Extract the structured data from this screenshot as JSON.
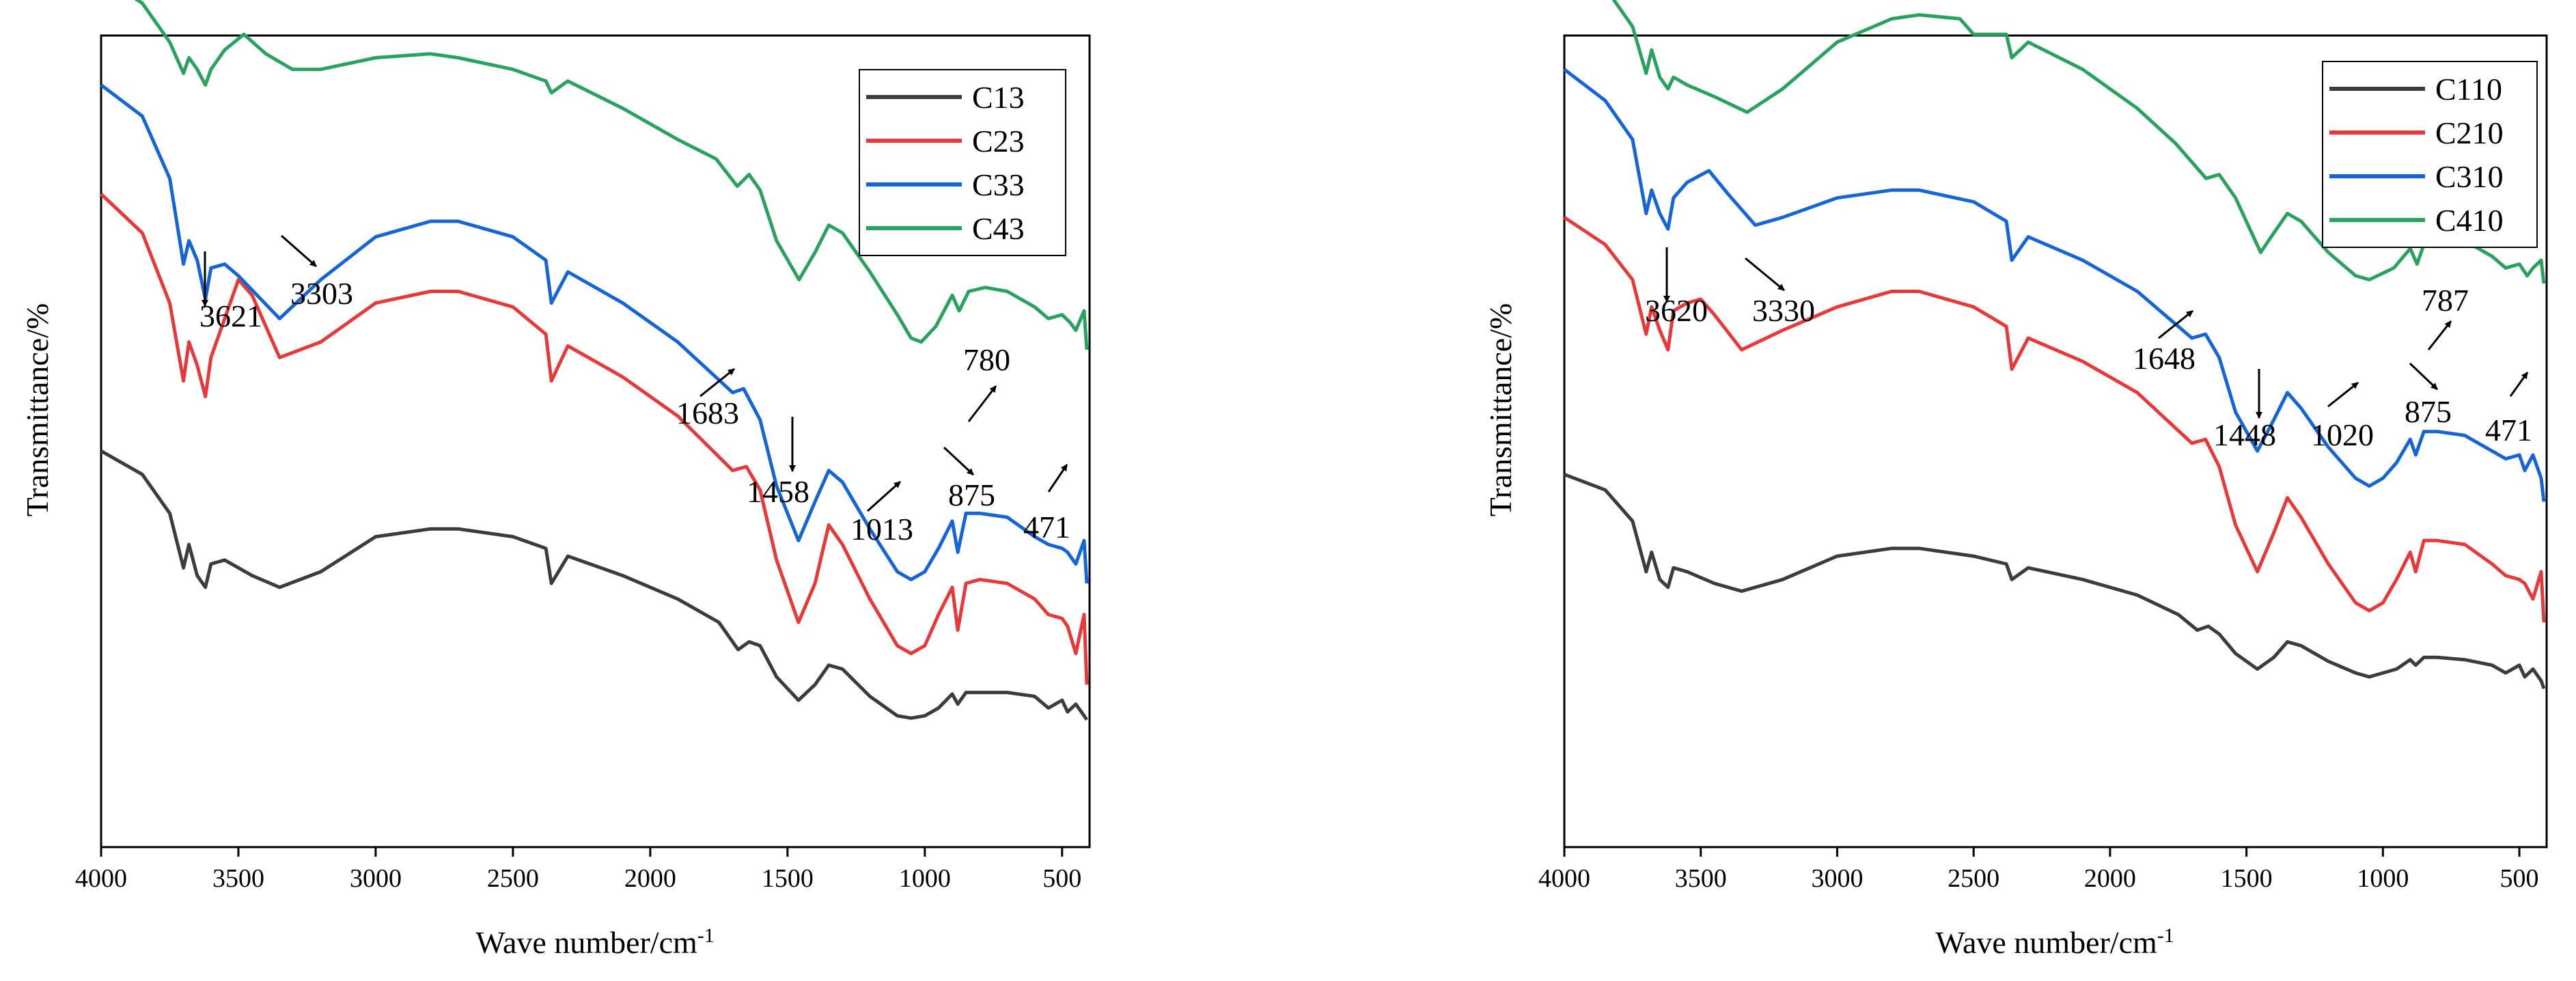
{
  "chart_data": [
    {
      "type": "line",
      "xlabel": "Wave number/cm",
      "xlabel_sup": "-1",
      "ylabel": "Transmittance/%",
      "xlim": [
        4000,
        400
      ],
      "x_ticks": [
        4000,
        3500,
        3000,
        2500,
        2000,
        1500,
        1000,
        500
      ],
      "x_tick_labels": [
        "4000",
        "3500",
        "3000",
        "2500",
        "2000",
        "1500",
        "1000",
        "500"
      ],
      "y_ticks_shown": false,
      "legend": "top-right",
      "series": [
        {
          "name": "C13",
          "color": "#3c3c3c",
          "x": [
            4000,
            3850,
            3750,
            3700,
            3680,
            3650,
            3620,
            3600,
            3550,
            3450,
            3350,
            3200,
            3000,
            2800,
            2700,
            2500,
            2380,
            2360,
            2300,
            2100,
            1900,
            1750,
            1680,
            1640,
            1600,
            1540,
            1460,
            1400,
            1350,
            1300,
            1200,
            1100,
            1050,
            1000,
            950,
            900,
            880,
            850,
            800,
            700,
            600,
            550,
            500,
            480,
            450,
            420,
            410
          ],
          "y": [
            -4.3,
            -4.6,
            -5.1,
            -5.8,
            -5.5,
            -5.9,
            -6.05,
            -5.75,
            -5.7,
            -5.9,
            -6.05,
            -5.85,
            -5.4,
            -5.3,
            -5.3,
            -5.4,
            -5.55,
            -6.0,
            -5.65,
            -5.9,
            -6.2,
            -6.5,
            -6.85,
            -6.75,
            -6.8,
            -7.2,
            -7.5,
            -7.3,
            -7.05,
            -7.1,
            -7.45,
            -7.7,
            -7.73,
            -7.7,
            -7.6,
            -7.42,
            -7.55,
            -7.4,
            -7.4,
            -7.4,
            -7.45,
            -7.6,
            -7.5,
            -7.65,
            -7.55,
            -7.7,
            -7.75
          ]
        },
        {
          "name": "C23",
          "color": "#e8393a",
          "x": [
            4000,
            3850,
            3750,
            3700,
            3680,
            3650,
            3620,
            3600,
            3500,
            3450,
            3350,
            3200,
            3000,
            2800,
            2700,
            2500,
            2380,
            2360,
            2300,
            2100,
            1900,
            1700,
            1650,
            1600,
            1540,
            1460,
            1400,
            1350,
            1300,
            1200,
            1100,
            1050,
            1000,
            950,
            900,
            880,
            850,
            800,
            700,
            600,
            550,
            500,
            480,
            450,
            420,
            410
          ],
          "y": [
            -1.0,
            -1.5,
            -2.4,
            -3.4,
            -2.9,
            -3.2,
            -3.6,
            -3.1,
            -2.1,
            -2.3,
            -3.1,
            -2.9,
            -2.4,
            -2.25,
            -2.25,
            -2.45,
            -2.8,
            -3.4,
            -2.95,
            -3.35,
            -3.85,
            -4.55,
            -4.5,
            -4.8,
            -5.7,
            -6.5,
            -6.0,
            -5.25,
            -5.5,
            -6.2,
            -6.8,
            -6.9,
            -6.8,
            -6.4,
            -6.05,
            -6.6,
            -6.0,
            -5.95,
            -6.0,
            -6.2,
            -6.4,
            -6.45,
            -6.55,
            -6.9,
            -6.4,
            -7.3
          ]
        },
        {
          "name": "C33",
          "color": "#1565d8",
          "x": [
            4000,
            3850,
            3750,
            3700,
            3680,
            3650,
            3620,
            3600,
            3550,
            3500,
            3350,
            3200,
            3000,
            2800,
            2700,
            2500,
            2380,
            2360,
            2300,
            2100,
            1900,
            1700,
            1660,
            1600,
            1540,
            1460,
            1400,
            1350,
            1300,
            1200,
            1100,
            1050,
            1000,
            950,
            900,
            880,
            850,
            800,
            700,
            600,
            550,
            500,
            480,
            450,
            420,
            410
          ],
          "y": [
            0.4,
            0.0,
            -0.8,
            -1.9,
            -1.6,
            -1.85,
            -2.35,
            -1.95,
            -1.9,
            -2.05,
            -2.6,
            -2.1,
            -1.55,
            -1.35,
            -1.35,
            -1.55,
            -1.85,
            -2.4,
            -2.0,
            -2.4,
            -2.9,
            -3.55,
            -3.5,
            -3.9,
            -4.75,
            -5.45,
            -4.95,
            -4.55,
            -4.7,
            -5.3,
            -5.85,
            -5.95,
            -5.85,
            -5.55,
            -5.2,
            -5.6,
            -5.1,
            -5.1,
            -5.15,
            -5.4,
            -5.5,
            -5.55,
            -5.6,
            -5.75,
            -5.45,
            -6.0
          ]
        },
        {
          "name": "C43",
          "color": "#2aa25f",
          "x": [
            4000,
            3850,
            3750,
            3700,
            3680,
            3650,
            3620,
            3600,
            3550,
            3480,
            3400,
            3303,
            3200,
            3000,
            2800,
            2700,
            2500,
            2380,
            2360,
            2300,
            2100,
            1900,
            1760,
            1683,
            1640,
            1600,
            1540,
            1458,
            1400,
            1350,
            1300,
            1200,
            1100,
            1050,
            1013,
            960,
            900,
            875,
            840,
            780,
            700,
            600,
            550,
            500,
            471,
            450,
            420,
            410
          ],
          "y": [
            1.8,
            1.45,
            0.95,
            0.55,
            0.75,
            0.6,
            0.4,
            0.6,
            0.85,
            1.05,
            0.8,
            0.6,
            0.6,
            0.75,
            0.8,
            0.75,
            0.6,
            0.45,
            0.3,
            0.45,
            0.1,
            -0.3,
            -0.55,
            -0.9,
            -0.75,
            -0.95,
            -1.6,
            -2.1,
            -1.75,
            -1.4,
            -1.5,
            -2.0,
            -2.55,
            -2.85,
            -2.9,
            -2.7,
            -2.3,
            -2.5,
            -2.25,
            -2.2,
            -2.25,
            -2.45,
            -2.6,
            -2.55,
            -2.65,
            -2.75,
            -2.5,
            -3.0
          ]
        }
      ],
      "annotations": [
        {
          "label": "3621",
          "x": 3621,
          "arrow": "down"
        },
        {
          "label": "3303",
          "x": 3303,
          "arrow": "down-right"
        },
        {
          "label": "1683",
          "x": 1683,
          "arrow": "up-right"
        },
        {
          "label": "1458",
          "x": 1458,
          "arrow": "down"
        },
        {
          "label": "1013",
          "x": 1013,
          "arrow": "up-right"
        },
        {
          "label": "875",
          "x": 875,
          "arrow": "down-right"
        },
        {
          "label": "780",
          "x": 780,
          "arrow": "up-right"
        },
        {
          "label": "471",
          "x": 471,
          "arrow": "up-right"
        }
      ]
    },
    {
      "type": "line",
      "xlabel": "Wave number/cm",
      "xlabel_sup": "-1",
      "ylabel": "Transmittance/%",
      "xlim": [
        4000,
        400
      ],
      "x_ticks": [
        4000,
        3500,
        3000,
        2500,
        2000,
        1500,
        1000,
        500
      ],
      "x_tick_labels": [
        "4000",
        "3500",
        "3000",
        "2500",
        "2000",
        "1500",
        "1000",
        "500"
      ],
      "y_ticks_shown": false,
      "legend": "top-right",
      "series": [
        {
          "name": "C110",
          "color": "#3c3c3c",
          "x": [
            4000,
            3850,
            3750,
            3700,
            3680,
            3650,
            3620,
            3600,
            3550,
            3450,
            3350,
            3200,
            3000,
            2800,
            2700,
            2500,
            2380,
            2360,
            2300,
            2100,
            1900,
            1750,
            1680,
            1640,
            1600,
            1540,
            1460,
            1400,
            1350,
            1300,
            1200,
            1100,
            1050,
            1000,
            950,
            900,
            880,
            850,
            800,
            700,
            600,
            550,
            500,
            480,
            450,
            420,
            410
          ],
          "y": [
            -4.6,
            -4.8,
            -5.2,
            -5.85,
            -5.6,
            -5.95,
            -6.05,
            -5.8,
            -5.85,
            -6.0,
            -6.1,
            -5.95,
            -5.65,
            -5.55,
            -5.55,
            -5.65,
            -5.75,
            -5.95,
            -5.8,
            -5.95,
            -6.15,
            -6.4,
            -6.6,
            -6.55,
            -6.65,
            -6.9,
            -7.1,
            -6.95,
            -6.75,
            -6.8,
            -7.0,
            -7.15,
            -7.2,
            -7.15,
            -7.1,
            -6.98,
            -7.05,
            -6.95,
            -6.95,
            -6.98,
            -7.05,
            -7.15,
            -7.05,
            -7.2,
            -7.1,
            -7.25,
            -7.35
          ]
        },
        {
          "name": "C210",
          "color": "#e8393a",
          "x": [
            4000,
            3850,
            3750,
            3700,
            3680,
            3650,
            3620,
            3600,
            3550,
            3500,
            3450,
            3350,
            3200,
            3000,
            2800,
            2700,
            2500,
            2380,
            2360,
            2300,
            2100,
            1900,
            1700,
            1650,
            1600,
            1540,
            1460,
            1400,
            1350,
            1300,
            1200,
            1100,
            1050,
            1000,
            950,
            900,
            880,
            850,
            800,
            700,
            600,
            550,
            500,
            480,
            450,
            420,
            410
          ],
          "y": [
            -1.3,
            -1.65,
            -2.1,
            -2.8,
            -2.45,
            -2.75,
            -3.0,
            -2.5,
            -2.4,
            -2.35,
            -2.55,
            -3.0,
            -2.75,
            -2.45,
            -2.25,
            -2.25,
            -2.45,
            -2.7,
            -3.25,
            -2.85,
            -3.15,
            -3.55,
            -4.2,
            -4.15,
            -4.5,
            -5.25,
            -5.85,
            -5.35,
            -4.9,
            -5.15,
            -5.75,
            -6.25,
            -6.35,
            -6.25,
            -5.95,
            -5.6,
            -5.85,
            -5.45,
            -5.45,
            -5.5,
            -5.75,
            -5.9,
            -5.95,
            -6.0,
            -6.2,
            -5.85,
            -6.5
          ]
        },
        {
          "name": "C310",
          "color": "#1565d8",
          "x": [
            4000,
            3850,
            3750,
            3700,
            3680,
            3650,
            3620,
            3600,
            3550,
            3470,
            3400,
            3300,
            3200,
            3000,
            2800,
            2700,
            2500,
            2380,
            2360,
            2300,
            2100,
            1900,
            1700,
            1650,
            1600,
            1540,
            1460,
            1400,
            1350,
            1300,
            1200,
            1100,
            1050,
            1000,
            950,
            900,
            880,
            850,
            800,
            700,
            600,
            550,
            500,
            480,
            450,
            420,
            410
          ],
          "y": [
            0.6,
            0.2,
            -0.3,
            -1.25,
            -0.95,
            -1.25,
            -1.45,
            -1.05,
            -0.85,
            -0.7,
            -1.0,
            -1.4,
            -1.3,
            -1.05,
            -0.95,
            -0.95,
            -1.1,
            -1.35,
            -1.85,
            -1.55,
            -1.85,
            -2.25,
            -2.85,
            -2.8,
            -3.1,
            -3.8,
            -4.3,
            -3.9,
            -3.55,
            -3.75,
            -4.25,
            -4.65,
            -4.75,
            -4.65,
            -4.45,
            -4.15,
            -4.35,
            -4.05,
            -4.05,
            -4.1,
            -4.3,
            -4.4,
            -4.35,
            -4.55,
            -4.35,
            -4.65,
            -4.95
          ]
        },
        {
          "name": "C410",
          "color": "#2aa25f",
          "x": [
            4000,
            3850,
            3750,
            3700,
            3680,
            3650,
            3620,
            3600,
            3550,
            3450,
            3330,
            3200,
            3000,
            2800,
            2700,
            2550,
            2500,
            2380,
            2360,
            2300,
            2100,
            1900,
            1760,
            1648,
            1600,
            1540,
            1448,
            1400,
            1350,
            1300,
            1200,
            1100,
            1050,
            1020,
            960,
            900,
            875,
            840,
            787,
            700,
            600,
            550,
            500,
            471,
            450,
            420,
            410
          ],
          "y": [
            2.0,
            1.65,
            1.15,
            0.55,
            0.85,
            0.5,
            0.35,
            0.5,
            0.4,
            0.25,
            0.05,
            0.35,
            0.95,
            1.25,
            1.3,
            1.25,
            1.05,
            1.05,
            0.75,
            0.95,
            0.6,
            0.1,
            -0.35,
            -0.8,
            -0.75,
            -1.05,
            -1.75,
            -1.5,
            -1.25,
            -1.35,
            -1.75,
            -2.05,
            -2.1,
            -2.05,
            -1.95,
            -1.7,
            -1.9,
            -1.55,
            -1.55,
            -1.6,
            -1.8,
            -1.95,
            -1.9,
            -2.05,
            -1.95,
            -1.85,
            -2.15
          ]
        }
      ],
      "annotations": [
        {
          "label": "3620",
          "x": 3620,
          "arrow": "down"
        },
        {
          "label": "3330",
          "x": 3330,
          "arrow": "down-right"
        },
        {
          "label": "1648",
          "x": 1648,
          "arrow": "up-right"
        },
        {
          "label": "1448",
          "x": 1448,
          "arrow": "down"
        },
        {
          "label": "1020",
          "x": 1020,
          "arrow": "up-right"
        },
        {
          "label": "875",
          "x": 875,
          "arrow": "down-right"
        },
        {
          "label": "787",
          "x": 787,
          "arrow": "up-right"
        },
        {
          "label": "471",
          "x": 471,
          "arrow": "up-right"
        }
      ]
    }
  ]
}
